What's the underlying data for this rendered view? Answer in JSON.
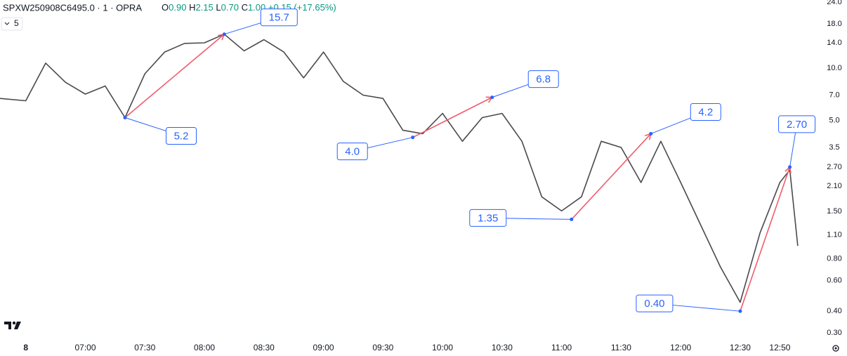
{
  "chart_data": {
    "type": "line",
    "title": "SPXW250908C6495.0 · 1 · OPRA",
    "ohlc": [
      {
        "key": "O",
        "text": "0.90"
      },
      {
        "key": "H",
        "text": "2.15"
      },
      {
        "key": "L",
        "text": "0.70"
      },
      {
        "key": "C",
        "text": "1.00"
      }
    ],
    "change": "+0.15 (+17.65%)",
    "interval": "5",
    "color": "#4a4a4f",
    "log_scale": true,
    "x": [
      "06:17",
      "06:30",
      "06:40",
      "06:50",
      "07:00",
      "07:10",
      "07:20",
      "07:30",
      "07:40",
      "07:50",
      "08:00",
      "08:10",
      "08:20",
      "08:30",
      "08:40",
      "08:50",
      "09:00",
      "09:10",
      "09:20",
      "09:30",
      "09:40",
      "09:50",
      "10:00",
      "10:10",
      "10:20",
      "10:30",
      "10:40",
      "10:50",
      "11:00",
      "11:10",
      "11:20",
      "11:30",
      "11:40",
      "11:50",
      "12:00",
      "12:10",
      "12:20",
      "12:30",
      "12:40",
      "12:50",
      "12:55",
      "12:59"
    ],
    "values": [
      6.7,
      6.5,
      10.7,
      8.3,
      7.1,
      7.9,
      5.2,
      9.3,
      12.4,
      13.9,
      14.0,
      15.7,
      12.6,
      14.6,
      12.4,
      8.8,
      12.4,
      8.4,
      7.0,
      6.7,
      4.4,
      4.2,
      5.5,
      3.8,
      5.2,
      5.5,
      3.8,
      1.82,
      1.51,
      1.82,
      3.8,
      3.5,
      2.2,
      3.8,
      2.2,
      1.26,
      0.72,
      0.45,
      1.13,
      2.2,
      2.6,
      0.95
    ],
    "xlim": [
      "06:17",
      "13:04"
    ],
    "xticks": [
      {
        "value": "06:30",
        "label": "8"
      },
      "07:00",
      "07:30",
      "08:00",
      "08:30",
      "09:00",
      "09:30",
      "10:00",
      "10:30",
      "11:00",
      "11:30",
      "12:00",
      "12:30",
      "12:50"
    ],
    "ylim": [
      0.284,
      24.7
    ],
    "yticks": [
      {
        "value": 24,
        "label": "24.0"
      },
      {
        "value": 18,
        "label": "18.0"
      },
      {
        "value": 14,
        "label": "14.0"
      },
      {
        "value": 10,
        "label": "10.0"
      },
      {
        "value": 7,
        "label": "7.0"
      },
      {
        "value": 5,
        "label": "5.0"
      },
      3.5,
      {
        "value": 2.7,
        "label": "2.70"
      },
      {
        "value": 2.1,
        "label": "2.10"
      },
      {
        "value": 1.5,
        "label": "1.50"
      },
      {
        "value": 1.1,
        "label": "1.10"
      },
      {
        "value": 0.8,
        "label": "0.80"
      },
      {
        "value": 0.6,
        "label": "0.60"
      },
      {
        "value": 0.4,
        "label": "0.40"
      },
      {
        "value": 0.3,
        "label": "0.30"
      }
    ],
    "moves": [
      {
        "from": {
          "x": "07:20",
          "value": 5.2
        },
        "to": {
          "x": "08:10",
          "value": 15.7
        }
      },
      {
        "from": {
          "x": "09:45",
          "value": 4,
          "label": "4.0"
        },
        "to": {
          "x": "10:25",
          "value": 6.8
        }
      },
      {
        "from": {
          "x": "11:05",
          "value": 1.35
        },
        "to": {
          "x": "11:45",
          "value": 4.2
        }
      },
      {
        "from": {
          "x": "12:30",
          "value": 0.4,
          "label": "0.40"
        },
        "to": {
          "x": "12:55",
          "value": 2.7,
          "label": "2.70"
        }
      }
    ]
  }
}
